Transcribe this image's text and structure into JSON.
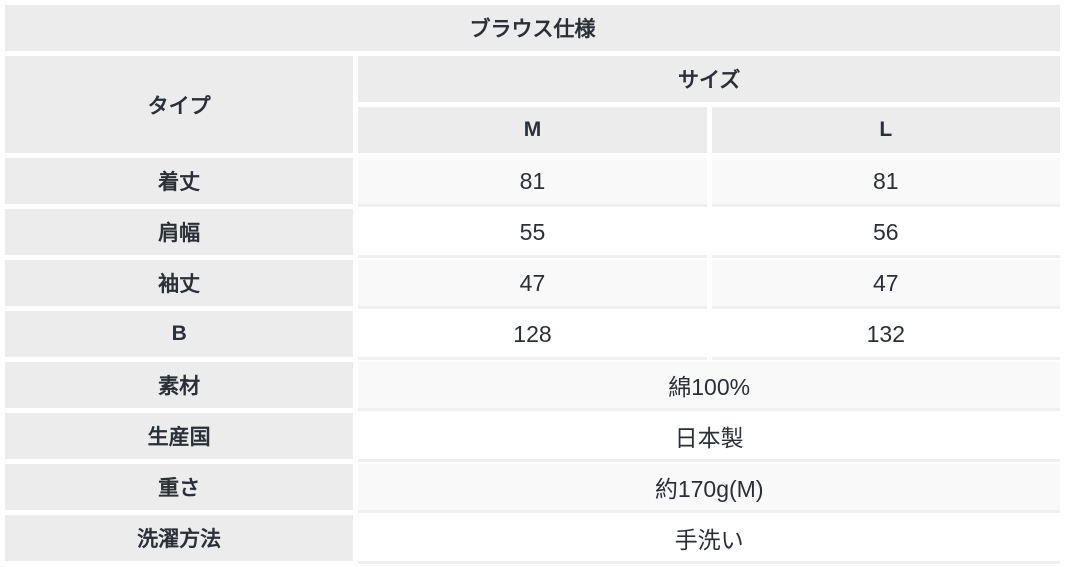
{
  "table": {
    "title": "ブラウス仕様",
    "type_header": "タイプ",
    "size_header": "サイズ",
    "size_columns": {
      "m": "M",
      "l": "L"
    },
    "measurement_rows": [
      {
        "label": "着丈",
        "m": "81",
        "l": "81"
      },
      {
        "label": "肩幅",
        "m": "55",
        "l": "56"
      },
      {
        "label": "袖丈",
        "m": "47",
        "l": "47"
      },
      {
        "label": "B",
        "m": "128",
        "l": "132"
      }
    ],
    "info_rows": [
      {
        "label": "素材",
        "value": "綿100%"
      },
      {
        "label": "生産国",
        "value": "日本製"
      },
      {
        "label": "重さ",
        "value": "約170g(M)"
      },
      {
        "label": "洗濯方法",
        "value": "手洗い"
      }
    ],
    "colors": {
      "header_bg": "#ececec",
      "stripe_bg": "#f9f9f9",
      "row_bg": "#ffffff",
      "separator": "#f0f0f0",
      "text": "#2b2f37"
    }
  }
}
